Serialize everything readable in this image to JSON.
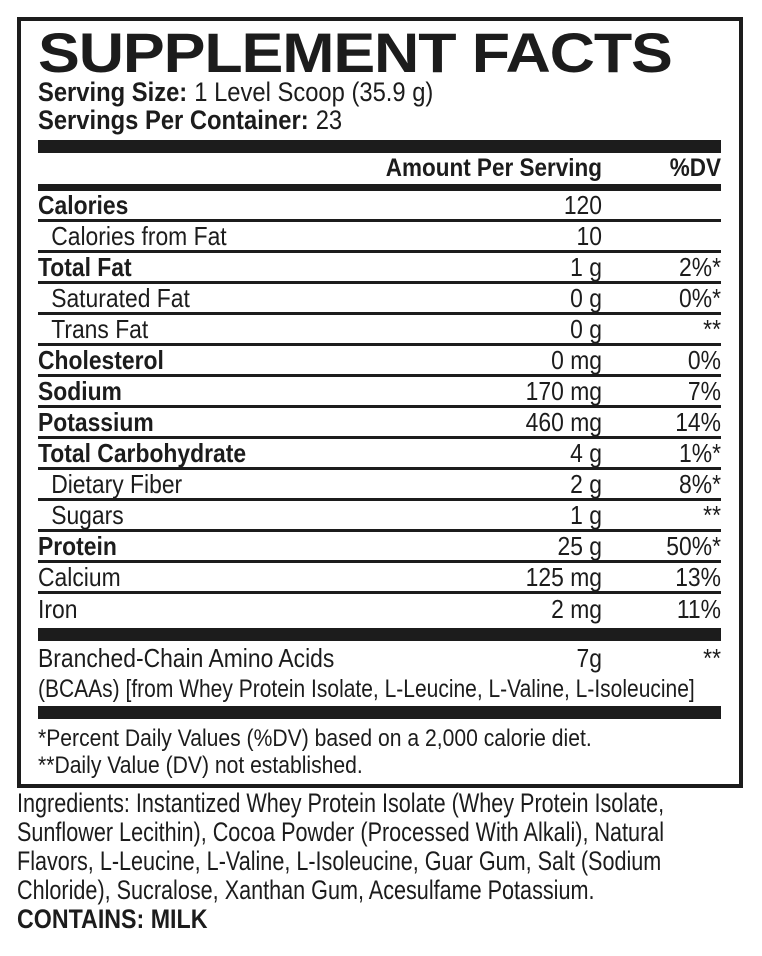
{
  "colors": {
    "ink": "#1c1c1c",
    "background": "#ffffff"
  },
  "panel": {
    "title": "SUPPLEMENT FACTS",
    "serving_size_label": "Serving Size:",
    "serving_size_value": "1 Level Scoop (35.9 g)",
    "servings_label": "Servings Per Container:",
    "servings_value": "23",
    "col_amount": "Amount Per Serving",
    "col_dv": "%DV",
    "rows": [
      {
        "label": "Calories",
        "amount": "120",
        "dv": ""
      },
      {
        "label": "Calories from Fat",
        "amount": "10",
        "dv": ""
      },
      {
        "label": "Total Fat",
        "amount": "1 g",
        "dv": "2%*"
      },
      {
        "label": "Saturated Fat",
        "amount": "0 g",
        "dv": "0%*"
      },
      {
        "label": "Trans Fat",
        "amount": "0 g",
        "dv": "**"
      },
      {
        "label": "Cholesterol",
        "amount": "0 mg",
        "dv": "0%"
      },
      {
        "label": "Sodium",
        "amount": "170 mg",
        "dv": "7%"
      },
      {
        "label": "Potassium",
        "amount": "460 mg",
        "dv": "14%"
      },
      {
        "label": "Total Carbohydrate",
        "amount": "4 g",
        "dv": "1%*"
      },
      {
        "label": "Dietary Fiber",
        "amount": "2 g",
        "dv": "8%*"
      },
      {
        "label": "Sugars",
        "amount": "1 g",
        "dv": "**"
      },
      {
        "label": "Protein",
        "amount": "25 g",
        "dv": "50%*"
      },
      {
        "label": "Calcium",
        "amount": "125 mg",
        "dv": "13%"
      },
      {
        "label": "Iron",
        "amount": "2 mg",
        "dv": "11%"
      }
    ],
    "bcaa": {
      "label": "Branched-Chain Amino Acids",
      "amount": "7g",
      "dv": "**",
      "note": "(BCAAs) [from Whey Protein Isolate, L-Leucine, L-Valine, L-Isoleucine]"
    },
    "footnotes": [
      "*Percent Daily Values (%DV) based on a 2,000 calorie diet.",
      "**Daily Value (DV) not established."
    ]
  },
  "ingredients": {
    "lines": [
      "Ingredients: Instantized Whey Protein Isolate (Whey Protein Isolate,",
      "Sunflower Lecithin), Cocoa Powder (Processed With Alkali), Natural",
      "Flavors, L-Leucine, L-Valine, L-Isoleucine, Guar Gum, Salt (Sodium",
      "Chloride), Sucralose, Xanthan Gum, Acesulfame Potassium."
    ],
    "contains": "CONTAINS: MILK"
  }
}
